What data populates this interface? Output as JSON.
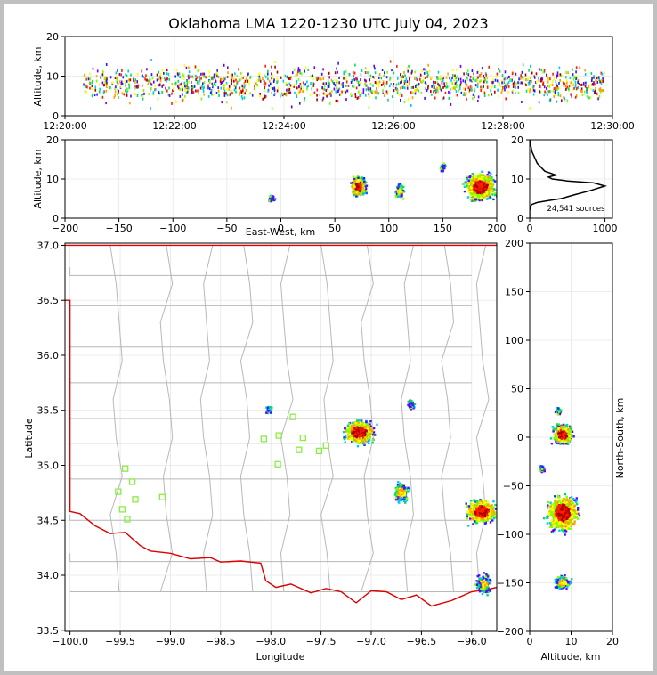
{
  "title": "Oklahoma LMA 1220-1230 UTC July 04, 2023",
  "colors": {
    "state_border": "#dd0000",
    "county_lines": "#b8b8b8",
    "station_marker": "#88ee44",
    "alt_hist_line": "#000000"
  },
  "chart_data": [
    {
      "id": "time_altitude",
      "type": "scatter",
      "ylabel": "Altitude, km",
      "xlabel": "",
      "x_ticks": [
        "12:20:00",
        "12:22:00",
        "12:24:00",
        "12:26:00",
        "12:28:00",
        "12:30:00"
      ],
      "y_ticks": [
        "0",
        "10",
        "20"
      ],
      "xlim": [
        "12:20:00",
        "12:30:00"
      ],
      "ylim": [
        0,
        20
      ],
      "colormap": "time (blue→green→yellow→red)"
    },
    {
      "id": "east_west_altitude",
      "type": "heatmap",
      "xlabel": "East-West, km",
      "ylabel": "Altitude, km",
      "x_ticks": [
        "−200",
        "−150",
        "−100",
        "−50",
        "0",
        "50",
        "100",
        "150",
        "200"
      ],
      "y_ticks": [
        "0",
        "10",
        "20"
      ],
      "xlim": [
        -200,
        200
      ],
      "ylim": [
        0,
        20
      ],
      "clusters": [
        {
          "x": -8,
          "z": 5,
          "density": "low"
        },
        {
          "x": 72,
          "z": 8,
          "density": "high"
        },
        {
          "x": 110,
          "z": 7,
          "density": "medium"
        },
        {
          "x": 150,
          "z": 13,
          "density": "low"
        },
        {
          "x": 185,
          "z": 8,
          "density": "high"
        }
      ]
    },
    {
      "id": "altitude_histogram",
      "type": "line",
      "annotation": "24,541 sources",
      "x_ticks": [
        "0",
        "1000"
      ],
      "y_ticks": [
        "0",
        "10",
        "20"
      ],
      "xlim": [
        0,
        1100
      ],
      "ylim": [
        0,
        20
      ],
      "series": [
        {
          "name": "",
          "x": [
            0,
            0,
            10,
            30,
            100,
            250,
            420,
            600,
            800,
            1000,
            850,
            500,
            300,
            250,
            350,
            200,
            100,
            30,
            0
          ],
          "y": [
            0,
            2,
            3,
            3.5,
            4,
            4.5,
            5,
            6,
            7,
            8.2,
            9,
            9.5,
            10,
            10.5,
            11,
            12,
            14,
            17,
            20
          ]
        }
      ]
    },
    {
      "id": "plan_view",
      "type": "heatmap",
      "xlabel": "Longitude",
      "ylabel": "Latitude",
      "x_ticks": [
        "−100.0",
        "−99.5",
        "−99.0",
        "−98.5",
        "−98.0",
        "−97.5",
        "−97.0",
        "−96.5",
        "−96.0"
      ],
      "y_ticks": [
        "33.5",
        "34.0",
        "34.5",
        "35.0",
        "35.5",
        "36.0",
        "36.5",
        "37.0"
      ],
      "xlim": [
        -100.05,
        -95.75
      ],
      "ylim": [
        33.49,
        37.02
      ],
      "clusters": [
        {
          "lon": -97.12,
          "lat": 35.3,
          "density": "high"
        },
        {
          "lon": -96.7,
          "lat": 34.75,
          "density": "medium"
        },
        {
          "lon": -95.9,
          "lat": 34.58,
          "density": "high"
        },
        {
          "lon": -95.88,
          "lat": 33.92,
          "density": "medium"
        },
        {
          "lon": -98.02,
          "lat": 35.51,
          "density": "low"
        },
        {
          "lon": -96.6,
          "lat": 35.55,
          "density": "low"
        }
      ],
      "stations": [
        {
          "lon": -99.45,
          "lat": 34.97
        },
        {
          "lon": -99.38,
          "lat": 34.85
        },
        {
          "lon": -99.52,
          "lat": 34.76
        },
        {
          "lon": -99.35,
          "lat": 34.69
        },
        {
          "lon": -99.48,
          "lat": 34.6
        },
        {
          "lon": -99.43,
          "lat": 34.51
        },
        {
          "lon": -99.08,
          "lat": 34.71
        },
        {
          "lon": -98.07,
          "lat": 35.24
        },
        {
          "lon": -97.92,
          "lat": 35.27
        },
        {
          "lon": -97.78,
          "lat": 35.44
        },
        {
          "lon": -97.68,
          "lat": 35.25
        },
        {
          "lon": -97.72,
          "lat": 35.14
        },
        {
          "lon": -97.93,
          "lat": 35.01
        },
        {
          "lon": -97.52,
          "lat": 35.13
        },
        {
          "lon": -97.45,
          "lat": 35.18
        }
      ]
    },
    {
      "id": "north_south_altitude",
      "type": "heatmap",
      "xlabel": "Altitude, km",
      "ylabel": "North-South, km",
      "x_ticks": [
        "0",
        "10",
        "20"
      ],
      "y_ticks": [
        "200",
        "150",
        "100",
        "50",
        "0",
        "−50",
        "−100",
        "−150",
        "−200"
      ],
      "xlim": [
        0,
        20
      ],
      "ylim": [
        -200,
        200
      ],
      "clusters": [
        {
          "z": 7,
          "y": 28,
          "density": "low"
        },
        {
          "z": 8,
          "y": 3,
          "density": "high"
        },
        {
          "z": 3,
          "y": -32,
          "density": "low"
        },
        {
          "z": 8,
          "y": -78,
          "density": "high"
        },
        {
          "z": 8,
          "y": -150,
          "density": "medium"
        }
      ]
    }
  ]
}
